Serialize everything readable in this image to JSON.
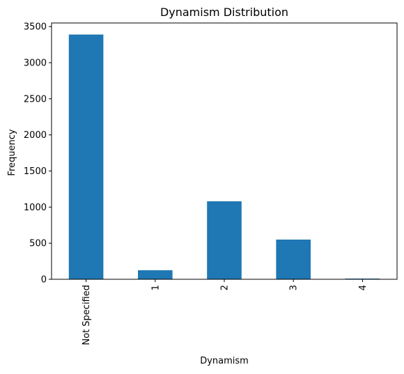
{
  "chart_data": {
    "type": "bar",
    "title": "Dynamism Distribution",
    "xlabel": "Dynamism",
    "ylabel": "Frequency",
    "categories": [
      "Not Specified",
      "1",
      "2",
      "3",
      "4"
    ],
    "values": [
      3390,
      125,
      1080,
      550,
      10
    ],
    "ylim": [
      0,
      3550
    ],
    "yticks": [
      0,
      500,
      1000,
      1500,
      2000,
      2500,
      3000,
      3500
    ],
    "grid": false,
    "bar_color": "#1f77b4"
  }
}
